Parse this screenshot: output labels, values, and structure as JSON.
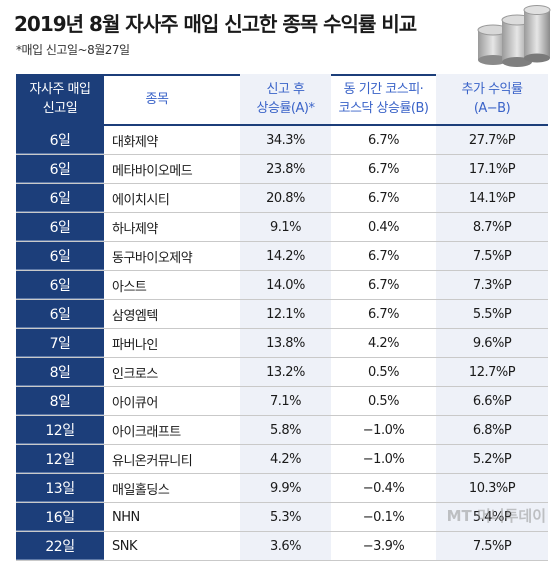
{
  "title": "2019년 8월 자사주 매입 신고한 종목 수익률 비교",
  "subtitle": "*매입 신고일~8월27일",
  "headers": {
    "date": [
      "자사주 매입",
      "신고일"
    ],
    "name": "종목",
    "a": [
      "신고 후",
      "상승률(A)*"
    ],
    "b": [
      "동 기간 코스피·",
      "코스닥 상승률(B)"
    ],
    "diff": [
      "추가 수익률",
      "(A−B)"
    ]
  },
  "rows": [
    {
      "date": "6일",
      "name": "대화제약",
      "a": "34.3%",
      "b": "6.7%",
      "diff": "27.7%P"
    },
    {
      "date": "6일",
      "name": "메타바이오메드",
      "a": "23.8%",
      "b": "6.7%",
      "diff": "17.1%P"
    },
    {
      "date": "6일",
      "name": "에이치시티",
      "a": "20.8%",
      "b": "6.7%",
      "diff": "14.1%P"
    },
    {
      "date": "6일",
      "name": "하나제약",
      "a": "9.1%",
      "b": "0.4%",
      "diff": "8.7%P"
    },
    {
      "date": "6일",
      "name": "동구바이오제약",
      "a": "14.2%",
      "b": "6.7%",
      "diff": "7.5%P"
    },
    {
      "date": "6일",
      "name": "아스트",
      "a": "14.0%",
      "b": "6.7%",
      "diff": "7.3%P"
    },
    {
      "date": "6일",
      "name": "삼영엠텍",
      "a": "12.1%",
      "b": "6.7%",
      "diff": "5.5%P"
    },
    {
      "date": "7일",
      "name": "파버나인",
      "a": "13.8%",
      "b": "4.2%",
      "diff": "9.6%P"
    },
    {
      "date": "8일",
      "name": "인크로스",
      "a": "13.2%",
      "b": "0.5%",
      "diff": "12.7%P"
    },
    {
      "date": "8일",
      "name": "아이큐어",
      "a": "7.1%",
      "b": "0.5%",
      "diff": "6.6%P"
    },
    {
      "date": "12일",
      "name": "아이크래프트",
      "a": "5.8%",
      "b": "−1.0%",
      "diff": "6.8%P"
    },
    {
      "date": "12일",
      "name": "유니온커뮤니티",
      "a": "4.2%",
      "b": "−1.0%",
      "diff": "5.2%P"
    },
    {
      "date": "13일",
      "name": "매일홀딩스",
      "a": "9.9%",
      "b": "−0.4%",
      "diff": "10.3%P"
    },
    {
      "date": "16일",
      "name": "NHN",
      "a": "5.3%",
      "b": "−0.1%",
      "diff": "5.4%P"
    },
    {
      "date": "22일",
      "name": "SNK",
      "a": "3.6%",
      "b": "−3.9%",
      "diff": "7.5%P"
    }
  ],
  "watermark": "MT 머니투데이",
  "colors": {
    "header_bg": "#1c3e7a",
    "header_text": "#3a63c8",
    "shade": "#eef1f8"
  },
  "icons": {
    "decoration": "coin-stack-icon"
  }
}
